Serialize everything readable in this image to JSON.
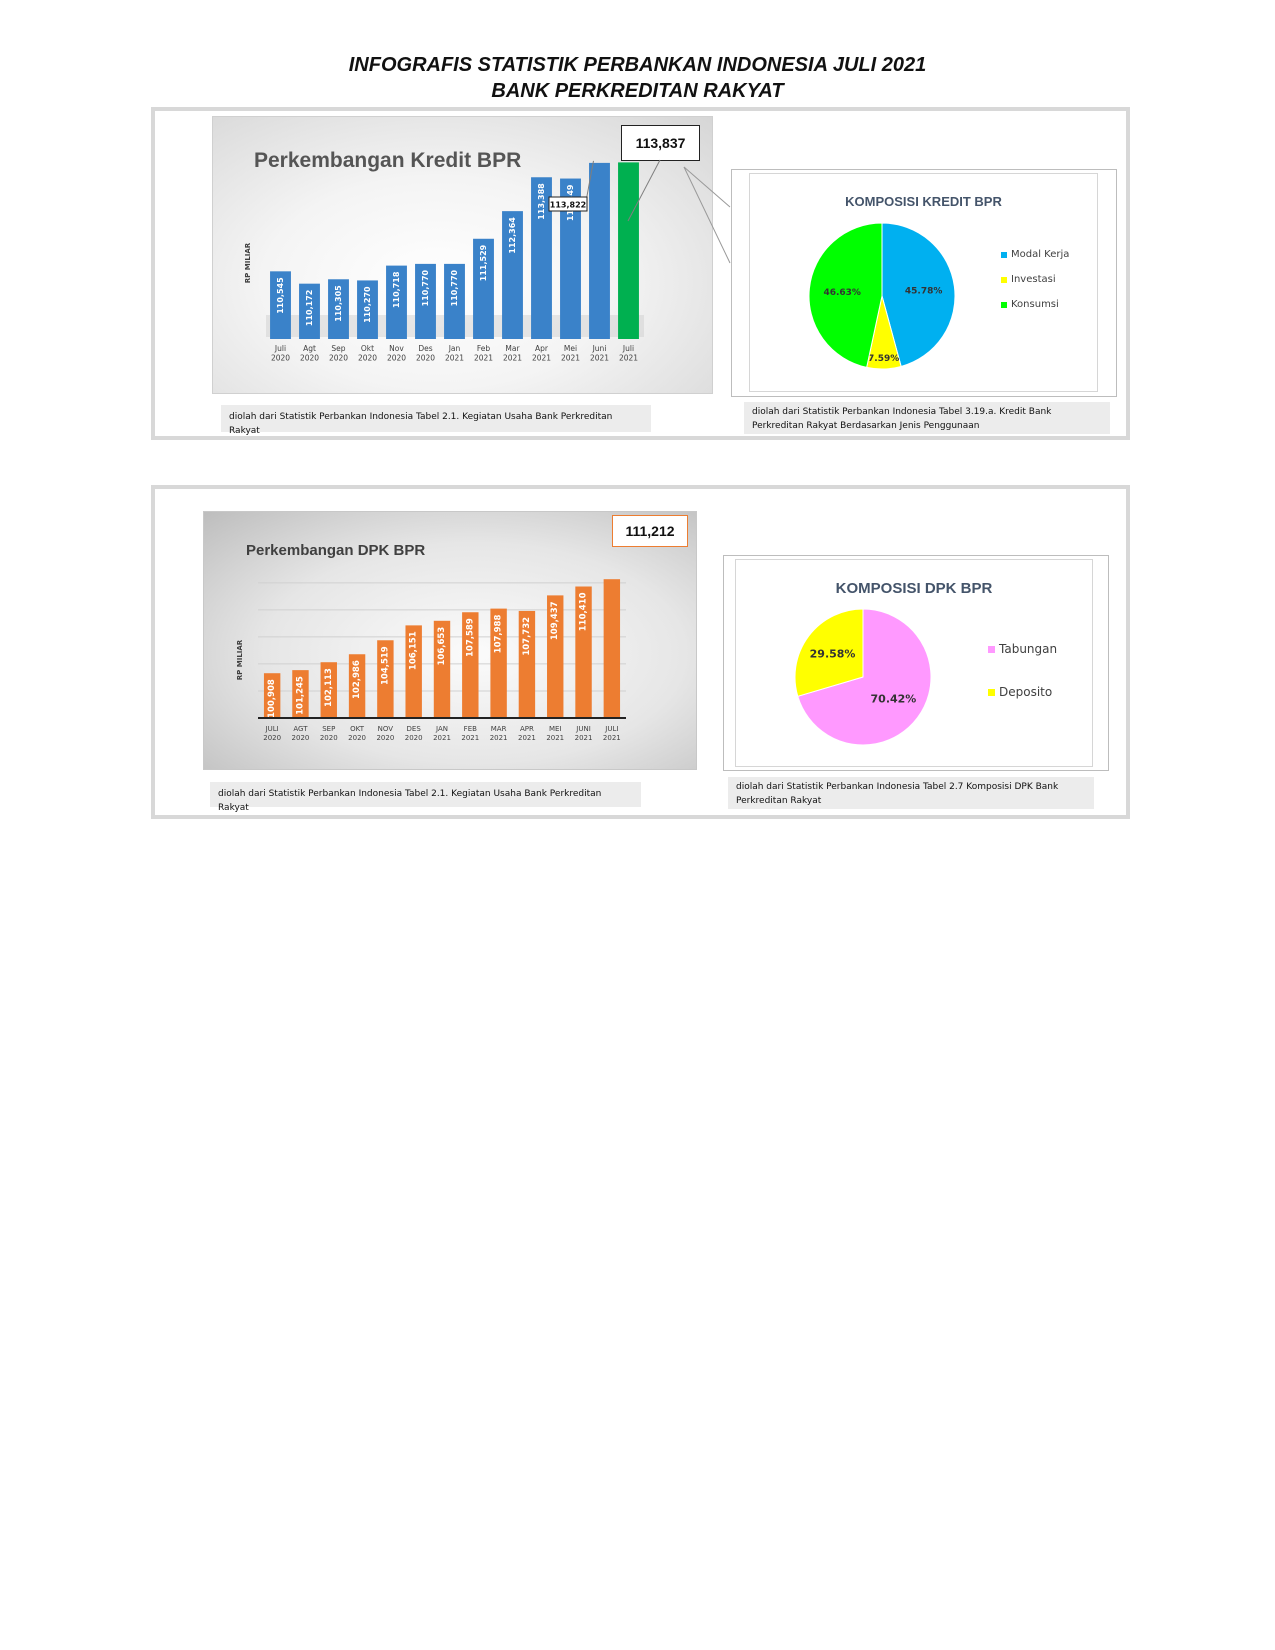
{
  "header": {
    "title_line1": "INFOGRAFIS STATISTIK PERBANKAN INDONESIA JULI 2021",
    "title_line2": "BANK PERKREDITAN RAKYAT"
  },
  "kredit": {
    "callout_value": "113,837",
    "prev_callout": "113,822",
    "note": "diolah dari Statistik Perbankan Indonesia Tabel 2.1. Kegiatan Usaha Bank Perkreditan Rakyat",
    "pie_note": "diolah dari Statistik Perbankan Indonesia Tabel 3.19.a. Kredit Bank Perkreditan Rakyat Berdasarkan Jenis Penggunaan"
  },
  "dpk": {
    "callout_value": "111,212",
    "note": "diolah dari Statistik Perbankan Indonesia Tabel 2.1. Kegiatan Usaha Bank Perkreditan Rakyat",
    "pie_note": "diolah dari Statistik Perbankan Indonesia Tabel 2.7 Komposisi DPK Bank Perkreditan Rakyat"
  },
  "colors": {
    "kredit_bar": "#3a82c9",
    "kredit_bar_last": "#00b050",
    "dpk_bar": "#ed7d31",
    "modal_kerja": "#00b0f0",
    "investasi": "#ffff00",
    "konsumsi": "#00ff00",
    "tabungan": "#ff99ff",
    "deposito": "#ffff00"
  },
  "chart_data": [
    {
      "type": "bar",
      "title": "Perkembangan Kredit BPR",
      "ylabel": "RP MILIAR",
      "categories": [
        [
          "Juli",
          "2020"
        ],
        [
          "Agt",
          "2020"
        ],
        [
          "Sep",
          "2020"
        ],
        [
          "Okt",
          "2020"
        ],
        [
          "Nov",
          "2020"
        ],
        [
          "Des",
          "2020"
        ],
        [
          "Jan",
          "2021"
        ],
        [
          "Feb",
          "2021"
        ],
        [
          "Mar",
          "2021"
        ],
        [
          "Apr",
          "2021"
        ],
        [
          "Mei",
          "2021"
        ],
        [
          "Juni",
          "2021"
        ],
        [
          "Juli",
          "2021"
        ]
      ],
      "values": [
        110545,
        110172,
        110305,
        110270,
        110718,
        110770,
        110770,
        111529,
        112364,
        113388,
        113349,
        113822,
        113837
      ],
      "labels": [
        "110,545",
        "110,172",
        "110,305",
        "110,270",
        "110,718",
        "110,770",
        "110,770",
        "111,529",
        "112,364",
        "113,388",
        "113,349",
        "",
        ""
      ],
      "ylim": [
        108500,
        114000
      ]
    },
    {
      "type": "pie",
      "title": "KOMPOSISI KREDIT BPR",
      "slices": [
        {
          "name": "Modal Kerja",
          "value": 45.78,
          "label": "45.78%"
        },
        {
          "name": "Investasi",
          "value": 7.59,
          "label": "7.59%"
        },
        {
          "name": "Konsumsi",
          "value": 46.63,
          "label": "46.63%"
        }
      ]
    },
    {
      "type": "bar",
      "title": "Perkembangan DPK BPR",
      "ylabel": "RP MILIAR",
      "categories": [
        [
          "JULI",
          "2020"
        ],
        [
          "AGT",
          "2020"
        ],
        [
          "SEP",
          "2020"
        ],
        [
          "OKT",
          "2020"
        ],
        [
          "NOV",
          "2020"
        ],
        [
          "DES",
          "2020"
        ],
        [
          "JAN",
          "2021"
        ],
        [
          "FEB",
          "2021"
        ],
        [
          "MAR",
          "2021"
        ],
        [
          "APR",
          "2021"
        ],
        [
          "MEI",
          "2021"
        ],
        [
          "JUNI",
          "2021"
        ],
        [
          "JULI",
          "2021"
        ]
      ],
      "values": [
        100908,
        101245,
        102113,
        102986,
        104519,
        106151,
        106653,
        107589,
        107988,
        107732,
        109437,
        110410,
        111212
      ],
      "labels": [
        "100,908",
        "101,245",
        "102,113",
        "102,986",
        "104,519",
        "106,151",
        "106,653",
        "107,589",
        "107,988",
        "107,732",
        "109,437",
        "110,410",
        ""
      ],
      "ylim": [
        96000,
        112000
      ],
      "grid": true
    },
    {
      "type": "pie",
      "title": "KOMPOSISI DPK BPR",
      "slices": [
        {
          "name": "Tabungan",
          "value": 70.42,
          "label": "70.42%"
        },
        {
          "name": "Deposito",
          "value": 29.58,
          "label": "29.58%"
        }
      ]
    }
  ]
}
